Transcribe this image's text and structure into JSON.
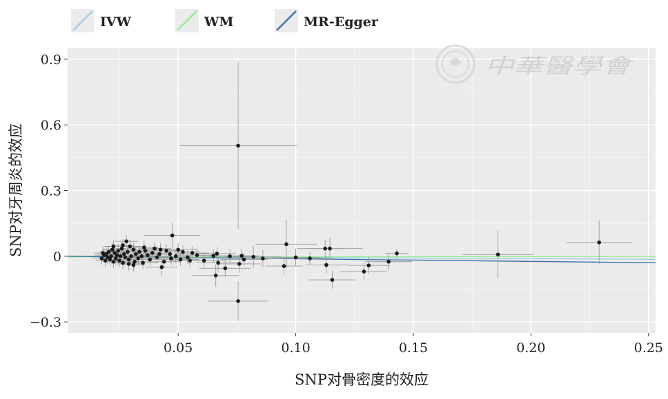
{
  "chart_data": {
    "type": "scatter",
    "xlabel": "SNP对骨密度的效应",
    "ylabel": "SNP对牙周炎的效应",
    "xlim": [
      0.003,
      0.253
    ],
    "ylim": [
      -0.35,
      0.95
    ],
    "x_ticks": [
      {
        "value": 0.05,
        "label": "0.05"
      },
      {
        "value": 0.1,
        "label": "0.10"
      },
      {
        "value": 0.15,
        "label": "0.15"
      },
      {
        "value": 0.2,
        "label": "0.20"
      },
      {
        "value": 0.25,
        "label": "0.25"
      }
    ],
    "y_ticks": [
      {
        "value": 0.9,
        "label": "0.9"
      },
      {
        "value": 0.6,
        "label": "0.6"
      },
      {
        "value": 0.3,
        "label": "0.3"
      },
      {
        "value": 0.0,
        "label": "0"
      },
      {
        "value": -0.3,
        "label": "−0.3"
      }
    ],
    "grid": true,
    "legend_position": "top",
    "legend": [
      {
        "name": "IVW",
        "color": "#a6cee3"
      },
      {
        "name": "WM",
        "color": "#90ee90"
      },
      {
        "name": "MR-Egger",
        "color": "#3a6fb0"
      }
    ],
    "lines": [
      {
        "name": "IVW",
        "color": "#a6cee3",
        "x": [
          0.0,
          0.253
        ],
        "y": [
          0.0,
          -0.014
        ]
      },
      {
        "name": "WM",
        "color": "#90ee90",
        "x": [
          0.0,
          0.253
        ],
        "y": [
          -0.003,
          -0.001
        ]
      },
      {
        "name": "MR-Egger",
        "color": "#3a6fb0",
        "x": [
          0.0,
          0.253
        ],
        "y": [
          0.0,
          -0.03
        ]
      }
    ],
    "points": [
      {
        "x": 0.0755,
        "y": 0.505,
        "xerr": 0.025,
        "yerr": 0.38
      },
      {
        "x": 0.0755,
        "y": -0.205,
        "xerr": 0.013,
        "yerr": 0.09
      },
      {
        "x": 0.229,
        "y": 0.063,
        "xerr": 0.014,
        "yerr": 0.1
      },
      {
        "x": 0.186,
        "y": 0.008,
        "xerr": 0.015,
        "yerr": 0.11
      },
      {
        "x": 0.0475,
        "y": 0.095,
        "xerr": 0.012,
        "yerr": 0.06
      },
      {
        "x": 0.096,
        "y": 0.055,
        "xerr": 0.013,
        "yerr": 0.11
      },
      {
        "x": 0.1145,
        "y": 0.035,
        "xerr": 0.014,
        "yerr": 0.05
      },
      {
        "x": 0.1125,
        "y": 0.035,
        "xerr": 0.008,
        "yerr": 0.04
      },
      {
        "x": 0.1155,
        "y": -0.108,
        "xerr": 0.01,
        "yerr": 0.04
      },
      {
        "x": 0.113,
        "y": -0.04,
        "xerr": 0.009,
        "yerr": 0.04
      },
      {
        "x": 0.129,
        "y": -0.07,
        "xerr": 0.01,
        "yerr": 0.04
      },
      {
        "x": 0.131,
        "y": -0.042,
        "xerr": 0.009,
        "yerr": 0.04
      },
      {
        "x": 0.1395,
        "y": -0.025,
        "xerr": 0.01,
        "yerr": 0.04
      },
      {
        "x": 0.143,
        "y": 0.013,
        "xerr": 0.005,
        "yerr": 0.02
      },
      {
        "x": 0.106,
        "y": -0.01,
        "xerr": 0.009,
        "yerr": 0.03
      },
      {
        "x": 0.1,
        "y": -0.005,
        "xerr": 0.01,
        "yerr": 0.04
      },
      {
        "x": 0.095,
        "y": -0.045,
        "xerr": 0.008,
        "yerr": 0.04
      },
      {
        "x": 0.086,
        "y": -0.01,
        "xerr": 0.01,
        "yerr": 0.04
      },
      {
        "x": 0.082,
        "y": -0.003,
        "xerr": 0.012,
        "yerr": 0.05
      },
      {
        "x": 0.078,
        "y": -0.015,
        "xerr": 0.01,
        "yerr": 0.03
      },
      {
        "x": 0.076,
        "y": -0.035,
        "xerr": 0.009,
        "yerr": 0.04
      },
      {
        "x": 0.077,
        "y": 0.002,
        "xerr": 0.008,
        "yerr": 0.03
      },
      {
        "x": 0.072,
        "y": 0.0,
        "xerr": 0.009,
        "yerr": 0.03
      },
      {
        "x": 0.07,
        "y": -0.055,
        "xerr": 0.011,
        "yerr": 0.04
      },
      {
        "x": 0.066,
        "y": -0.088,
        "xerr": 0.01,
        "yerr": 0.05
      },
      {
        "x": 0.067,
        "y": -0.03,
        "xerr": 0.009,
        "yerr": 0.04
      },
      {
        "x": 0.065,
        "y": 0.002,
        "xerr": 0.008,
        "yerr": 0.03
      },
      {
        "x": 0.0665,
        "y": 0.012,
        "xerr": 0.008,
        "yerr": 0.03
      },
      {
        "x": 0.061,
        "y": -0.02,
        "xerr": 0.009,
        "yerr": 0.03
      },
      {
        "x": 0.058,
        "y": 0.005,
        "xerr": 0.008,
        "yerr": 0.03
      },
      {
        "x": 0.056,
        "y": 0.015,
        "xerr": 0.007,
        "yerr": 0.03
      },
      {
        "x": 0.054,
        "y": -0.005,
        "xerr": 0.008,
        "yerr": 0.03
      },
      {
        "x": 0.052,
        "y": 0.02,
        "xerr": 0.007,
        "yerr": 0.03
      },
      {
        "x": 0.05,
        "y": 0.03,
        "xerr": 0.008,
        "yerr": 0.03
      },
      {
        "x": 0.049,
        "y": 0.0,
        "xerr": 0.007,
        "yerr": 0.03
      },
      {
        "x": 0.047,
        "y": -0.01,
        "xerr": 0.008,
        "yerr": 0.03
      },
      {
        "x": 0.045,
        "y": 0.025,
        "xerr": 0.007,
        "yerr": 0.03
      },
      {
        "x": 0.044,
        "y": -0.025,
        "xerr": 0.007,
        "yerr": 0.03
      },
      {
        "x": 0.043,
        "y": -0.05,
        "xerr": 0.007,
        "yerr": 0.04
      },
      {
        "x": 0.042,
        "y": 0.01,
        "xerr": 0.007,
        "yerr": 0.03
      },
      {
        "x": 0.041,
        "y": -0.005,
        "xerr": 0.006,
        "yerr": 0.03
      },
      {
        "x": 0.04,
        "y": 0.035,
        "xerr": 0.007,
        "yerr": 0.03
      },
      {
        "x": 0.039,
        "y": 0.015,
        "xerr": 0.006,
        "yerr": 0.03
      },
      {
        "x": 0.038,
        "y": -0.015,
        "xerr": 0.006,
        "yerr": 0.03
      },
      {
        "x": 0.037,
        "y": 0.005,
        "xerr": 0.006,
        "yerr": 0.03
      },
      {
        "x": 0.036,
        "y": 0.025,
        "xerr": 0.006,
        "yerr": 0.03
      },
      {
        "x": 0.035,
        "y": -0.03,
        "xerr": 0.006,
        "yerr": 0.03
      },
      {
        "x": 0.0345,
        "y": 0.0,
        "xerr": 0.006,
        "yerr": 0.03
      },
      {
        "x": 0.0335,
        "y": 0.02,
        "xerr": 0.006,
        "yerr": 0.03
      },
      {
        "x": 0.033,
        "y": -0.01,
        "xerr": 0.006,
        "yerr": 0.03
      },
      {
        "x": 0.032,
        "y": 0.01,
        "xerr": 0.005,
        "yerr": 0.03
      },
      {
        "x": 0.0315,
        "y": -0.025,
        "xerr": 0.005,
        "yerr": 0.03
      },
      {
        "x": 0.031,
        "y": 0.03,
        "xerr": 0.005,
        "yerr": 0.03
      },
      {
        "x": 0.03,
        "y": 0.0,
        "xerr": 0.005,
        "yerr": 0.03
      },
      {
        "x": 0.0295,
        "y": 0.045,
        "xerr": 0.005,
        "yerr": 0.03
      },
      {
        "x": 0.029,
        "y": -0.015,
        "xerr": 0.005,
        "yerr": 0.03
      },
      {
        "x": 0.0285,
        "y": 0.02,
        "xerr": 0.005,
        "yerr": 0.03
      },
      {
        "x": 0.028,
        "y": 0.068,
        "xerr": 0.005,
        "yerr": 0.03
      },
      {
        "x": 0.0275,
        "y": -0.005,
        "xerr": 0.005,
        "yerr": 0.03
      },
      {
        "x": 0.027,
        "y": 0.01,
        "xerr": 0.005,
        "yerr": 0.03
      },
      {
        "x": 0.0265,
        "y": -0.03,
        "xerr": 0.005,
        "yerr": 0.03
      },
      {
        "x": 0.026,
        "y": 0.035,
        "xerr": 0.005,
        "yerr": 0.03
      },
      {
        "x": 0.0255,
        "y": 0.0,
        "xerr": 0.005,
        "yerr": 0.03
      },
      {
        "x": 0.025,
        "y": -0.02,
        "xerr": 0.005,
        "yerr": 0.03
      },
      {
        "x": 0.0245,
        "y": 0.025,
        "xerr": 0.005,
        "yerr": 0.03
      },
      {
        "x": 0.024,
        "y": 0.005,
        "xerr": 0.004,
        "yerr": 0.03
      },
      {
        "x": 0.0235,
        "y": -0.01,
        "xerr": 0.004,
        "yerr": 0.03
      },
      {
        "x": 0.023,
        "y": 0.015,
        "xerr": 0.004,
        "yerr": 0.03
      },
      {
        "x": 0.0225,
        "y": -0.025,
        "xerr": 0.004,
        "yerr": 0.03
      },
      {
        "x": 0.022,
        "y": 0.03,
        "xerr": 0.004,
        "yerr": 0.03
      },
      {
        "x": 0.0215,
        "y": 0.0,
        "xerr": 0.004,
        "yerr": 0.03
      },
      {
        "x": 0.021,
        "y": -0.015,
        "xerr": 0.004,
        "yerr": 0.03
      },
      {
        "x": 0.0205,
        "y": 0.02,
        "xerr": 0.004,
        "yerr": 0.03
      },
      {
        "x": 0.02,
        "y": -0.005,
        "xerr": 0.004,
        "yerr": 0.03
      },
      {
        "x": 0.0195,
        "y": 0.01,
        "xerr": 0.004,
        "yerr": 0.03
      },
      {
        "x": 0.019,
        "y": -0.02,
        "xerr": 0.004,
        "yerr": 0.03
      },
      {
        "x": 0.0185,
        "y": 0.005,
        "xerr": 0.004,
        "yerr": 0.03
      },
      {
        "x": 0.018,
        "y": 0.015,
        "xerr": 0.004,
        "yerr": 0.03
      },
      {
        "x": 0.0175,
        "y": -0.01,
        "xerr": 0.004,
        "yerr": 0.03
      },
      {
        "x": 0.0265,
        "y": 0.05,
        "xerr": 0.005,
        "yerr": 0.03
      },
      {
        "x": 0.031,
        "y": -0.04,
        "xerr": 0.005,
        "yerr": 0.03
      },
      {
        "x": 0.0355,
        "y": 0.04,
        "xerr": 0.006,
        "yerr": 0.03
      },
      {
        "x": 0.0225,
        "y": 0.045,
        "xerr": 0.004,
        "yerr": 0.03
      },
      {
        "x": 0.029,
        "y": -0.035,
        "xerr": 0.005,
        "yerr": 0.03
      },
      {
        "x": 0.0425,
        "y": 0.03,
        "xerr": 0.007,
        "yerr": 0.03
      },
      {
        "x": 0.0465,
        "y": 0.01,
        "xerr": 0.007,
        "yerr": 0.03
      },
      {
        "x": 0.051,
        "y": -0.015,
        "xerr": 0.008,
        "yerr": 0.03
      },
      {
        "x": 0.055,
        "y": -0.02,
        "xerr": 0.008,
        "yerr": 0.03
      }
    ]
  },
  "watermark": {
    "text": "中華醫學會",
    "seal_text": "Chinese Medical Association"
  }
}
